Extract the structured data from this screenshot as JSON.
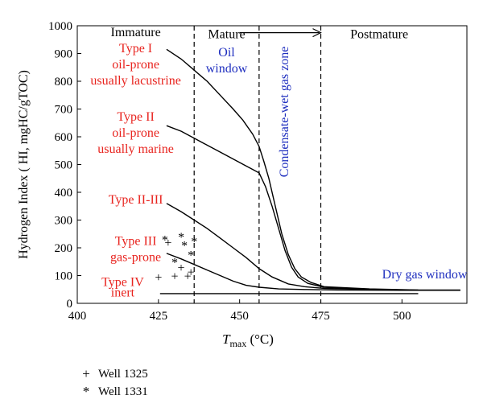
{
  "chart_data": {
    "type": "line",
    "xlabel_main": "T",
    "xlabel_sub": "max",
    "xlabel_unit": " (°C)",
    "ylabel": "Hydrogen Index ( HI, mgHC/gTOC)",
    "xlim": [
      400,
      520
    ],
    "ylim": [
      0,
      1000
    ],
    "x_ticks": [
      400,
      425,
      450,
      475,
      500
    ],
    "y_ticks": [
      0,
      100,
      200,
      300,
      400,
      500,
      600,
      700,
      800,
      900,
      1000
    ],
    "boundaries": [
      {
        "x": 436,
        "style": "dashed"
      },
      {
        "x": 456,
        "style": "dashed"
      },
      {
        "x": 475,
        "style": "dashed"
      }
    ],
    "zones": [
      {
        "label": "Immature",
        "x": 418,
        "y": 962,
        "color": "#000000"
      },
      {
        "label": "Mature",
        "x": 446,
        "y": 955,
        "color": "#000000"
      },
      {
        "label": "Postmature",
        "x": 493,
        "y": 955,
        "color": "#000000"
      }
    ],
    "window_labels": [
      {
        "lines": [
          "Oil",
          "window"
        ],
        "x": 446,
        "y": 890,
        "color": "#1f2fbf"
      },
      {
        "lines": [
          "Dry gas window"
        ],
        "x": 507,
        "y": 90,
        "color": "#1f2fbf"
      }
    ],
    "vertical_label": {
      "text": "Condensate-wet gas zone",
      "x": 465,
      "y": 690,
      "color": "#1f2fbf"
    },
    "arrow": {
      "x_start": 450,
      "x_end": 475,
      "y": 975
    },
    "type_labels": [
      {
        "lines": [
          "Type I",
          "oil-prone",
          "usually lacustrine"
        ],
        "x": 418,
        "y": 905,
        "color": "#e8231e"
      },
      {
        "lines": [
          "Type II",
          "oil-prone",
          "usually marine"
        ],
        "x": 418,
        "y": 658,
        "color": "#e8231e"
      },
      {
        "lines": [
          "Type II-III"
        ],
        "x": 418,
        "y": 360,
        "color": "#e8231e"
      },
      {
        "lines": [
          "Type III",
          "gas-prone"
        ],
        "x": 418,
        "y": 210,
        "color": "#e8231e"
      },
      {
        "lines": [
          "Type IV"
        ],
        "x": 414,
        "y": 62,
        "color": "#e8231e"
      },
      {
        "lines": [
          "inert"
        ],
        "x": 414,
        "y": 24,
        "color": "#e8231e"
      }
    ],
    "series": [
      {
        "points": [
          [
            427.5,
            915
          ],
          [
            432,
            880
          ],
          [
            436,
            840
          ],
          [
            440,
            800
          ],
          [
            444,
            750
          ],
          [
            448,
            700
          ],
          [
            451,
            660
          ],
          [
            454,
            610
          ],
          [
            456,
            565
          ],
          [
            457.5,
            510
          ],
          [
            459,
            450
          ],
          [
            461,
            350
          ],
          [
            463,
            250
          ],
          [
            465,
            175
          ],
          [
            467,
            125
          ],
          [
            469,
            95
          ],
          [
            472,
            75
          ],
          [
            476,
            60
          ],
          [
            490,
            52
          ],
          [
            505,
            48
          ],
          [
            518,
            48
          ]
        ]
      },
      {
        "points": [
          [
            427.5,
            640
          ],
          [
            432,
            620
          ],
          [
            436,
            595
          ],
          [
            440,
            570
          ],
          [
            444,
            545
          ],
          [
            448,
            520
          ],
          [
            452,
            495
          ],
          [
            456,
            470
          ],
          [
            458,
            420
          ],
          [
            460,
            350
          ],
          [
            462,
            270
          ],
          [
            464,
            190
          ],
          [
            466,
            130
          ],
          [
            468,
            95
          ],
          [
            471,
            72
          ],
          [
            476,
            58
          ],
          [
            490,
            50
          ],
          [
            505,
            47
          ],
          [
            518,
            47
          ]
        ]
      },
      {
        "points": [
          [
            427.5,
            360
          ],
          [
            432,
            330
          ],
          [
            436,
            300
          ],
          [
            440,
            270
          ],
          [
            444,
            235
          ],
          [
            448,
            200
          ],
          [
            452,
            165
          ],
          [
            456,
            125
          ],
          [
            460,
            95
          ],
          [
            465,
            70
          ],
          [
            470,
            60
          ],
          [
            476,
            54
          ],
          [
            490,
            50
          ],
          [
            505,
            48
          ]
        ]
      },
      {
        "points": [
          [
            427.5,
            180
          ],
          [
            432,
            160
          ],
          [
            436,
            140
          ],
          [
            440,
            120
          ],
          [
            444,
            100
          ],
          [
            448,
            80
          ],
          [
            452,
            65
          ],
          [
            456,
            58
          ],
          [
            462,
            52
          ],
          [
            470,
            50
          ],
          [
            480,
            48
          ],
          [
            500,
            47
          ],
          [
            505,
            47
          ]
        ]
      },
      {
        "points": [
          [
            425.5,
            35
          ],
          [
            505,
            35
          ]
        ]
      }
    ],
    "scatter": [
      {
        "name": "Well 1325",
        "marker": "+",
        "points": [
          [
            425,
            95
          ],
          [
            428,
            220
          ],
          [
            430,
            100
          ],
          [
            432,
            130
          ],
          [
            434,
            100
          ],
          [
            435,
            115
          ]
        ]
      },
      {
        "name": "Well 1331",
        "marker": "*",
        "points": [
          [
            427,
            230
          ],
          [
            430,
            150
          ],
          [
            432,
            240
          ],
          [
            433,
            210
          ],
          [
            435,
            175
          ],
          [
            436,
            225
          ]
        ]
      }
    ]
  },
  "legend": [
    {
      "marker": "+",
      "label": "Well 1325"
    },
    {
      "marker": "*",
      "label": "Well 1331"
    }
  ]
}
